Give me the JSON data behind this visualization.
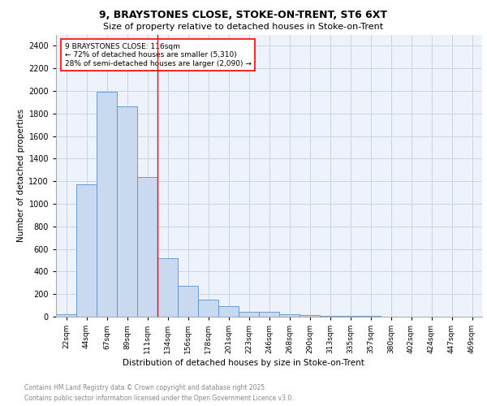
{
  "title_line1": "9, BRAYSTONES CLOSE, STOKE-ON-TRENT, ST6 6XT",
  "title_line2": "Size of property relative to detached houses in Stoke-on-Trent",
  "xlabel": "Distribution of detached houses by size in Stoke-on-Trent",
  "ylabel": "Number of detached properties",
  "bar_labels": [
    "22sqm",
    "44sqm",
    "67sqm",
    "89sqm",
    "111sqm",
    "134sqm",
    "156sqm",
    "178sqm",
    "201sqm",
    "223sqm",
    "246sqm",
    "268sqm",
    "290sqm",
    "313sqm",
    "335sqm",
    "357sqm",
    "380sqm",
    "402sqm",
    "424sqm",
    "447sqm",
    "469sqm"
  ],
  "bar_values": [
    25,
    1170,
    1990,
    1860,
    1240,
    515,
    275,
    150,
    90,
    45,
    45,
    20,
    15,
    5,
    5,
    5,
    2,
    2,
    2,
    2,
    2
  ],
  "bar_color": "#c9d9f0",
  "bar_edge_color": "#5a90c8",
  "grid_color": "#c8d4e8",
  "background_color": "#eef2fa",
  "red_line_x": 4.5,
  "annotation_text": "9 BRAYSTONES CLOSE: 116sqm\n← 72% of detached houses are smaller (5,310)\n28% of semi-detached houses are larger (2,090) →",
  "footer_line1": "Contains HM Land Registry data © Crown copyright and database right 2025.",
  "footer_line2": "Contains public sector information licensed under the Open Government Licence v3.0.",
  "ylim": [
    0,
    2500
  ],
  "yticks": [
    0,
    200,
    400,
    600,
    800,
    1000,
    1200,
    1400,
    1600,
    1800,
    2000,
    2200,
    2400
  ]
}
